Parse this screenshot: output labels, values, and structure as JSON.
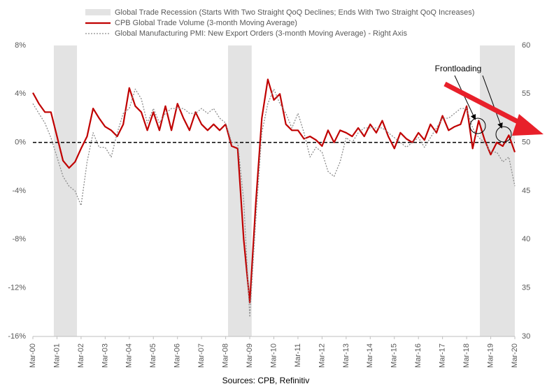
{
  "chart_data": {
    "type": "line",
    "legend": [
      "Global Trade Recession (Starts With Two Straight QoQ Declines; Ends With Two Straight QoQ Increases)"
    ],
    "shaded_periods": [
      [
        2001.04,
        2002.0
      ],
      [
        2008.27,
        2009.25
      ],
      [
        2018.72,
        2020.17
      ]
    ],
    "shaded_color": "#e3e3e3",
    "annotation": "Frontloading",
    "source": "Sources: CPB, Refinitiv",
    "reference_line": 0,
    "x": [
      2000.17,
      2000.42,
      2000.67,
      2000.92,
      2001.17,
      2001.42,
      2001.67,
      2001.92,
      2002.17,
      2002.42,
      2002.67,
      2002.92,
      2003.17,
      2003.42,
      2003.67,
      2003.92,
      2004.17,
      2004.42,
      2004.67,
      2004.92,
      2005.17,
      2005.42,
      2005.67,
      2005.92,
      2006.17,
      2006.42,
      2006.67,
      2006.92,
      2007.17,
      2007.42,
      2007.67,
      2007.92,
      2008.17,
      2008.42,
      2008.67,
      2008.92,
      2009.17,
      2009.42,
      2009.67,
      2009.92,
      2010.17,
      2010.42,
      2010.67,
      2010.92,
      2011.17,
      2011.42,
      2011.67,
      2011.92,
      2012.17,
      2012.42,
      2012.67,
      2012.92,
      2013.17,
      2013.42,
      2013.67,
      2013.92,
      2014.17,
      2014.42,
      2014.67,
      2014.92,
      2015.17,
      2015.42,
      2015.67,
      2015.92,
      2016.17,
      2016.42,
      2016.67,
      2016.92,
      2017.17,
      2017.42,
      2017.67,
      2017.92,
      2018.17,
      2018.42,
      2018.67,
      2018.92,
      2019.17,
      2019.42,
      2019.67,
      2019.92,
      2020.17
    ],
    "series": [
      {
        "name": "CPB Global Trade Volume (3-month Moving Average)",
        "color": "#c00000",
        "axis": "y",
        "values": [
          4.1,
          3.2,
          2.5,
          2.5,
          0.5,
          -1.5,
          -2.1,
          -1.6,
          -0.5,
          0.5,
          2.8,
          2.0,
          1.3,
          1.0,
          0.5,
          1.5,
          4.5,
          3.0,
          2.5,
          1.0,
          2.5,
          1.0,
          3.0,
          1.0,
          3.2,
          2.0,
          1.0,
          2.5,
          1.5,
          1.0,
          1.5,
          1.0,
          1.5,
          -0.3,
          -0.5,
          -8,
          -13.2,
          -5,
          2,
          5.2,
          3.5,
          4.0,
          1.5,
          1.0,
          1.0,
          0.3,
          0.5,
          0.2,
          -0.3,
          1.0,
          0.0,
          1.0,
          0.8,
          0.5,
          1.2,
          0.5,
          1.5,
          0.8,
          1.8,
          0.5,
          -0.5,
          0.8,
          0.3,
          0.0,
          0.8,
          0.2,
          1.5,
          0.8,
          2.2,
          1.0,
          1.3,
          1.5,
          3.0,
          -0.5,
          1.8,
          0.2,
          -1.0,
          0.0,
          -0.3,
          0.6,
          -0.8
        ]
      },
      {
        "name": "Global Manufacturing PMI: New Export Orders (3-month Moving Average) - Right Axis",
        "color": "#8c8c8c",
        "axis": "y2",
        "values": [
          54,
          53,
          52,
          50.5,
          48.5,
          46.5,
          45.5,
          45,
          43.5,
          48,
          51,
          49.5,
          49.5,
          48.5,
          51,
          53,
          53.5,
          55.5,
          54.5,
          52,
          53.5,
          52,
          53,
          53.5,
          53.5,
          53.5,
          53,
          53,
          53.5,
          53,
          53.5,
          52.5,
          52,
          50,
          50,
          44,
          32,
          42,
          51,
          54,
          55.5,
          54,
          53,
          51.5,
          53,
          51,
          48.5,
          49.5,
          49,
          47,
          46.5,
          48,
          50.5,
          50,
          51,
          51.5,
          51.5,
          51.5,
          51.5,
          51,
          50.5,
          50,
          49.5,
          50,
          50.5,
          49.5,
          50.5,
          51.5,
          52.5,
          52.5,
          53,
          53.5,
          53.5,
          51.5,
          50.5,
          50,
          49,
          49,
          48,
          48.5,
          45.5
        ]
      }
    ],
    "xlim": [
      2000.17,
      2020.17
    ],
    "xticks": [
      {
        "value": 2000.17,
        "label": "Mar-00"
      },
      {
        "value": 2001.17,
        "label": "Mar-01"
      },
      {
        "value": 2002.17,
        "label": "Mar-02"
      },
      {
        "value": 2003.17,
        "label": "Mar-03"
      },
      {
        "value": 2004.17,
        "label": "Mar-04"
      },
      {
        "value": 2005.17,
        "label": "Mar-05"
      },
      {
        "value": 2006.17,
        "label": "Mar-06"
      },
      {
        "value": 2007.17,
        "label": "Mar-07"
      },
      {
        "value": 2008.17,
        "label": "Mar-08"
      },
      {
        "value": 2009.17,
        "label": "Mar-09"
      },
      {
        "value": 2010.17,
        "label": "Mar-10"
      },
      {
        "value": 2011.17,
        "label": "Mar-11"
      },
      {
        "value": 2012.17,
        "label": "Mar-12"
      },
      {
        "value": 2013.17,
        "label": "Mar-13"
      },
      {
        "value": 2014.17,
        "label": "Mar-14"
      },
      {
        "value": 2015.17,
        "label": "Mar-15"
      },
      {
        "value": 2016.17,
        "label": "Mar-16"
      },
      {
        "value": 2017.17,
        "label": "Mar-17"
      },
      {
        "value": 2018.17,
        "label": "Mar-18"
      },
      {
        "value": 2019.17,
        "label": "Mar-19"
      },
      {
        "value": 2020.17,
        "label": "Mar-20"
      }
    ],
    "ylim": [
      -16,
      8
    ],
    "yticks": [
      {
        "value": 8,
        "label": "8%"
      },
      {
        "value": 4,
        "label": "4%"
      },
      {
        "value": 0,
        "label": "0%"
      },
      {
        "value": -4,
        "label": "-4%"
      },
      {
        "value": -8,
        "label": "-8%"
      },
      {
        "value": -12,
        "label": "-12%"
      },
      {
        "value": -16,
        "label": "-16%"
      }
    ],
    "y2lim": [
      30,
      60
    ],
    "y2ticks": [
      60,
      55,
      50,
      45,
      40,
      35,
      30
    ]
  }
}
